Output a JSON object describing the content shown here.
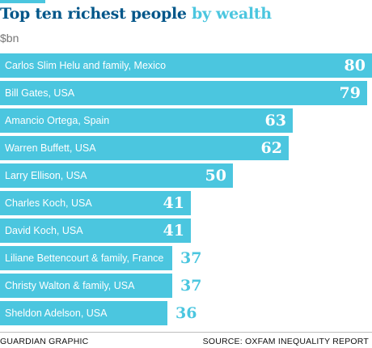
{
  "chart_data": {
    "type": "bar",
    "orientation": "horizontal",
    "title": "Top ten richest people by wealth",
    "title_main": "Top ten richest people",
    "title_accent": "by wealth",
    "unit": "$bn",
    "categories": [
      "Carlos Slim Helu and family, Mexico",
      "Bill Gates, USA",
      "Amancio Ortega, Spain",
      "Warren Buffett, USA",
      "Larry Ellison, USA",
      "Charles Koch, USA",
      "David Koch, USA",
      "Liliane Bettencourt & family, France",
      "Christy Walton & family, USA",
      "Sheldon Adelson, USA"
    ],
    "values": [
      80,
      79,
      63,
      62,
      50,
      41,
      41,
      37,
      37,
      36
    ],
    "xlim": [
      0,
      80
    ],
    "grid": false,
    "legend": "none"
  },
  "colors": {
    "bar": "#4bc6df",
    "title": "#005689",
    "title_accent": "#4bc6df"
  },
  "footer": {
    "credit": "GUARDIAN GRAPHIC",
    "source": "SOURCE: OXFAM INEQUALITY REPORT"
  }
}
